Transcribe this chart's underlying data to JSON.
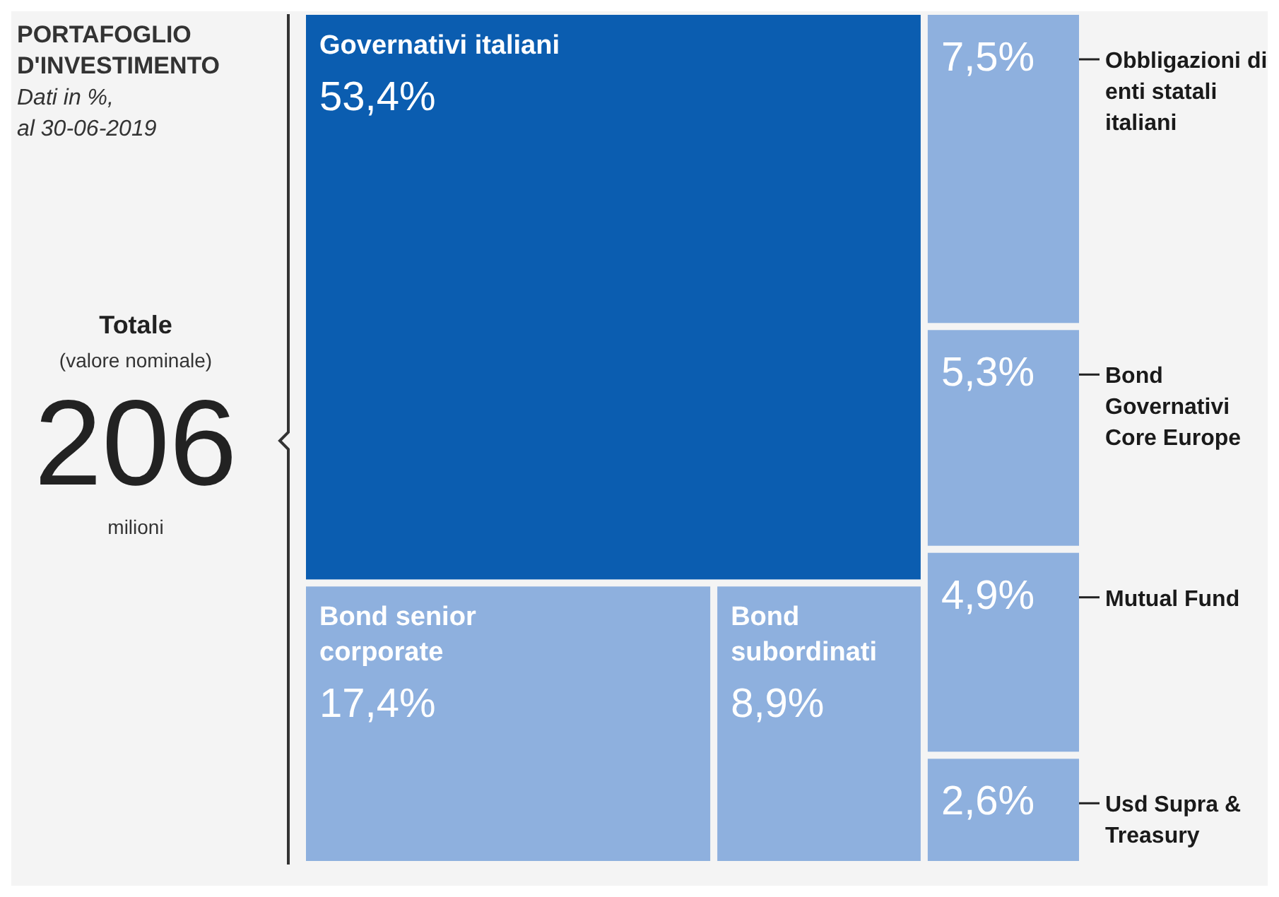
{
  "chart_data": {
    "type": "other",
    "title": "PORTAFOGLIO D'INVESTIMENTO",
    "subtitle": "Dati in %, al 30-06-2019",
    "annotations": [
      "Totale",
      "(valore nominale)",
      "206",
      "milioni"
    ],
    "categories": [
      "Governativi italiani",
      "Bond senior corporate",
      "Bond subordinati",
      "Obbligazioni di enti statali italiani",
      "Bond Governativi Core Europe",
      "Mutual Fund",
      "Usd Supra & Treasury"
    ],
    "values": [
      53.4,
      17.4,
      8.9,
      7.5,
      5.3,
      4.9,
      2.6
    ],
    "value_labels": [
      "53,4%",
      "17,4%",
      "8,9%",
      "7,5%",
      "5,3%",
      "4,9%",
      "2,6%"
    ],
    "colors": [
      "#0b5db0",
      "#8eb0de",
      "#8eb0de",
      "#8eb0de",
      "#8eb0de",
      "#8eb0de",
      "#8eb0de"
    ]
  }
}
